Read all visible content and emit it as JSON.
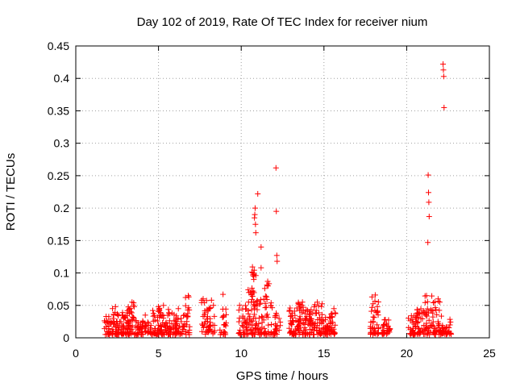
{
  "chart_data": {
    "type": "scatter",
    "title": "Day 102 of 2019, Rate Of TEC Index for receiver nium",
    "xlabel": "GPS time / hours",
    "ylabel": "ROTI / TECUs",
    "xlim": [
      0,
      25
    ],
    "ylim": [
      0,
      0.45
    ],
    "xticks": [
      0,
      5,
      10,
      15,
      20,
      25
    ],
    "yticks": [
      0,
      0.05,
      0.1,
      0.15,
      0.2,
      0.25,
      0.3,
      0.35,
      0.4,
      0.45
    ],
    "grid": true,
    "marker": "plus",
    "color": "#ff0000",
    "series": [
      {
        "clusters": [
          {
            "x0": 1.7,
            "x1": 2.2,
            "ymin": 0.005,
            "ymax": 0.035,
            "n": 28
          },
          {
            "x0": 2.2,
            "x1": 2.7,
            "ymin": 0.005,
            "ymax": 0.048,
            "n": 40
          },
          {
            "x0": 2.7,
            "x1": 3.2,
            "ymin": 0.005,
            "ymax": 0.04,
            "n": 34
          },
          {
            "x0": 3.1,
            "x1": 3.6,
            "ymin": 0.005,
            "ymax": 0.055,
            "n": 40
          },
          {
            "x0": 3.6,
            "x1": 4.1,
            "ymin": 0.005,
            "ymax": 0.03,
            "n": 26
          },
          {
            "x0": 4.0,
            "x1": 4.6,
            "ymin": 0.005,
            "ymax": 0.025,
            "n": 26
          },
          {
            "x0": 4.6,
            "x1": 5.1,
            "ymin": 0.005,
            "ymax": 0.05,
            "n": 36
          },
          {
            "x0": 5.1,
            "x1": 5.6,
            "ymin": 0.005,
            "ymax": 0.046,
            "n": 36
          },
          {
            "x0": 5.6,
            "x1": 6.1,
            "ymin": 0.005,
            "ymax": 0.04,
            "n": 32
          },
          {
            "x0": 6.0,
            "x1": 6.6,
            "ymin": 0.005,
            "ymax": 0.038,
            "n": 30
          },
          {
            "x0": 6.6,
            "x1": 6.9,
            "ymin": 0.005,
            "ymax": 0.065,
            "n": 20
          },
          {
            "x0": 7.6,
            "x1": 8.0,
            "ymin": 0.005,
            "ymax": 0.06,
            "n": 24
          },
          {
            "x0": 8.0,
            "x1": 8.4,
            "ymin": 0.005,
            "ymax": 0.055,
            "n": 22
          },
          {
            "x0": 8.7,
            "x1": 9.1,
            "ymin": 0.005,
            "ymax": 0.045,
            "n": 20
          },
          {
            "x0": 9.8,
            "x1": 10.3,
            "ymin": 0.005,
            "ymax": 0.05,
            "n": 28
          },
          {
            "x0": 10.3,
            "x1": 10.7,
            "ymin": 0.005,
            "ymax": 0.075,
            "n": 30
          },
          {
            "x0": 10.6,
            "x1": 10.9,
            "ymin": 0.005,
            "ymax": 0.11,
            "n": 32
          },
          {
            "x0": 10.9,
            "x1": 11.4,
            "ymin": 0.005,
            "ymax": 0.06,
            "n": 30
          },
          {
            "x0": 11.4,
            "x1": 11.9,
            "ymin": 0.005,
            "ymax": 0.085,
            "n": 28
          },
          {
            "x0": 11.9,
            "x1": 12.4,
            "ymin": 0.005,
            "ymax": 0.04,
            "n": 24
          },
          {
            "x0": 12.9,
            "x1": 13.4,
            "ymin": 0.005,
            "ymax": 0.05,
            "n": 40
          },
          {
            "x0": 13.4,
            "x1": 13.9,
            "ymin": 0.005,
            "ymax": 0.055,
            "n": 42
          },
          {
            "x0": 13.9,
            "x1": 14.4,
            "ymin": 0.005,
            "ymax": 0.045,
            "n": 38
          },
          {
            "x0": 14.4,
            "x1": 14.9,
            "ymin": 0.005,
            "ymax": 0.055,
            "n": 36
          },
          {
            "x0": 14.9,
            "x1": 15.4,
            "ymin": 0.005,
            "ymax": 0.035,
            "n": 30
          },
          {
            "x0": 15.4,
            "x1": 15.7,
            "ymin": 0.005,
            "ymax": 0.045,
            "n": 22
          },
          {
            "x0": 17.8,
            "x1": 18.3,
            "ymin": 0.005,
            "ymax": 0.066,
            "n": 40
          },
          {
            "x0": 18.5,
            "x1": 19.0,
            "ymin": 0.005,
            "ymax": 0.03,
            "n": 30
          },
          {
            "x0": 20.1,
            "x1": 20.6,
            "ymin": 0.005,
            "ymax": 0.035,
            "n": 30
          },
          {
            "x0": 20.6,
            "x1": 21.1,
            "ymin": 0.005,
            "ymax": 0.045,
            "n": 36
          },
          {
            "x0": 21.1,
            "x1": 21.6,
            "ymin": 0.005,
            "ymax": 0.065,
            "n": 34
          },
          {
            "x0": 21.6,
            "x1": 22.1,
            "ymin": 0.005,
            "ymax": 0.06,
            "n": 36
          },
          {
            "x0": 22.1,
            "x1": 22.7,
            "ymin": 0.005,
            "ymax": 0.03,
            "n": 32
          }
        ],
        "points": [
          [
            10.7,
            0.097
          ],
          [
            10.72,
            0.1
          ],
          [
            10.74,
            0.095
          ],
          [
            10.76,
            0.09
          ],
          [
            10.78,
            0.098
          ],
          [
            10.8,
            0.185
          ],
          [
            10.82,
            0.19
          ],
          [
            10.84,
            0.2
          ],
          [
            10.86,
            0.175
          ],
          [
            10.88,
            0.162
          ],
          [
            11.0,
            0.222
          ],
          [
            11.2,
            0.14
          ],
          [
            11.2,
            0.108
          ],
          [
            11.6,
            0.087
          ],
          [
            11.62,
            0.08
          ],
          [
            12.1,
            0.262
          ],
          [
            12.12,
            0.195
          ],
          [
            12.15,
            0.127
          ],
          [
            12.17,
            0.118
          ],
          [
            21.3,
            0.251
          ],
          [
            21.32,
            0.224
          ],
          [
            21.34,
            0.209
          ],
          [
            21.36,
            0.187
          ],
          [
            21.28,
            0.147
          ],
          [
            22.2,
            0.422
          ],
          [
            22.22,
            0.413
          ],
          [
            22.24,
            0.403
          ],
          [
            22.26,
            0.355
          ],
          [
            2.4,
            0.048
          ],
          [
            3.4,
            0.055
          ],
          [
            4.2,
            0.035
          ],
          [
            5.3,
            0.05
          ],
          [
            6.2,
            0.045
          ],
          [
            6.8,
            0.065
          ],
          [
            7.7,
            0.06
          ],
          [
            8.2,
            0.058
          ],
          [
            8.9,
            0.067
          ],
          [
            9.9,
            0.05
          ],
          [
            13.7,
            0.055
          ],
          [
            14.6,
            0.055
          ],
          [
            15.6,
            0.045
          ],
          [
            18.1,
            0.066
          ],
          [
            21.2,
            0.065
          ],
          [
            21.9,
            0.06
          ],
          [
            22.0,
            0.055
          ]
        ]
      }
    ]
  }
}
